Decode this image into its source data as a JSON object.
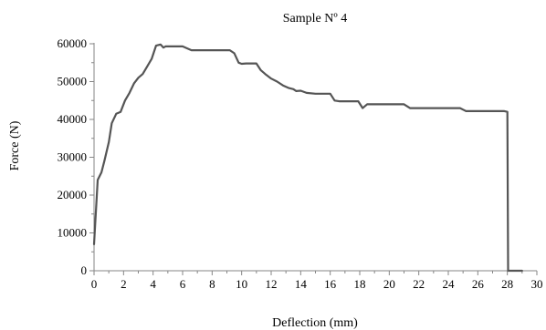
{
  "chart_data": {
    "type": "line",
    "title": "Sample Nº 4",
    "xlabel": "Deflection (mm)",
    "ylabel": "Force (N)",
    "xlim": [
      0,
      30
    ],
    "ylim": [
      0,
      60000
    ],
    "x_ticks": [
      "0",
      "2",
      "4",
      "6",
      "8",
      "10",
      "12",
      "14",
      "16",
      "18",
      "20",
      "22",
      "24",
      "26",
      "28",
      "30"
    ],
    "y_ticks": [
      "0",
      "10000",
      "20000",
      "30000",
      "40000",
      "50000",
      "60000"
    ],
    "grid": false,
    "legend": "none",
    "series": [
      {
        "color": "#555555",
        "x": [
          0,
          0.25,
          0.5,
          0.7,
          1.0,
          1.2,
          1.5,
          1.8,
          2.1,
          2.4,
          2.7,
          3.0,
          3.3,
          3.6,
          3.9,
          4.2,
          4.5,
          4.7,
          4.85,
          5.1,
          5.3,
          6.0,
          6.6,
          6.9,
          7.5,
          8.5,
          9.2,
          9.5,
          9.8,
          10.0,
          10.3,
          11.0,
          11.3,
          11.6,
          12.0,
          12.4,
          12.8,
          13.2,
          13.5,
          13.7,
          14.0,
          14.4,
          15.0,
          15.6,
          16.0,
          16.3,
          16.6,
          17.2,
          17.9,
          18.2,
          18.5,
          19.0,
          20.0,
          21.0,
          21.4,
          22.0,
          23.0,
          24.0,
          24.8,
          25.2,
          26.0,
          27.0,
          27.8,
          28.0,
          28.05,
          28.3,
          29.0
        ],
        "y": [
          7000,
          24000,
          26000,
          29000,
          34000,
          39000,
          41500,
          42000,
          45000,
          47000,
          49500,
          51000,
          52000,
          54000,
          56000,
          59500,
          59800,
          59000,
          59300,
          59300,
          59300,
          59300,
          58300,
          58300,
          58300,
          58300,
          58300,
          57500,
          55000,
          54700,
          54800,
          54800,
          53000,
          52000,
          50800,
          50000,
          49000,
          48300,
          48000,
          47500,
          47600,
          47000,
          46800,
          46800,
          46800,
          45000,
          44800,
          44800,
          44800,
          43000,
          44000,
          44000,
          44000,
          44000,
          43000,
          43000,
          43000,
          43000,
          43000,
          42200,
          42200,
          42200,
          42200,
          42000,
          0,
          0,
          0
        ]
      }
    ]
  }
}
